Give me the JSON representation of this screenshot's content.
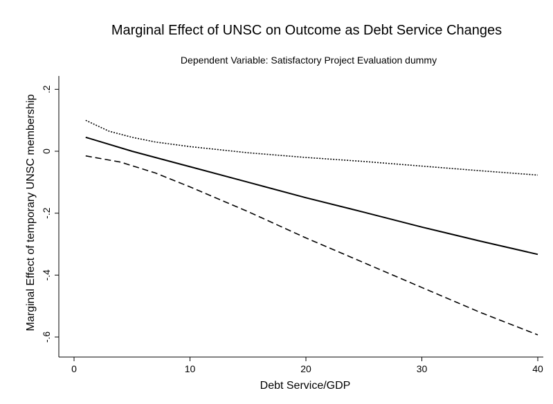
{
  "chart_data": {
    "type": "line",
    "title": "Marginal Effect of UNSC on Outcome as Debt Service Changes",
    "subtitle": "Dependent Variable: Satisfactory Project Evaluation dummy",
    "xlabel": "Debt Service/GDP",
    "ylabel": "Marginal Effect of temporary UNSC membership",
    "xlim": [
      0,
      40
    ],
    "ylim": [
      -0.6,
      0.2
    ],
    "x_ticks": [
      0,
      10,
      20,
      30,
      40
    ],
    "x_tick_labels": [
      "0",
      "10",
      "20",
      "30",
      "40"
    ],
    "y_ticks": [
      0.2,
      0,
      -0.2,
      -0.4,
      -0.6
    ],
    "y_tick_labels": [
      ".2",
      "0",
      "-.2",
      "-.4",
      "-.6"
    ],
    "grid": false,
    "legend": "none",
    "series": [
      {
        "style": "solid",
        "color": "#000000",
        "x": [
          1,
          5,
          10,
          15,
          20,
          25,
          30,
          35,
          40
        ],
        "y": [
          0.045,
          0.0,
          -0.05,
          -0.1,
          -0.15,
          -0.197,
          -0.245,
          -0.29,
          -0.333
        ]
      },
      {
        "style": "dotted",
        "color": "#000000",
        "x": [
          1,
          3,
          5,
          7,
          10,
          15,
          20,
          25,
          30,
          35,
          40
        ],
        "y": [
          0.1,
          0.065,
          0.045,
          0.03,
          0.015,
          -0.005,
          -0.02,
          -0.033,
          -0.048,
          -0.063,
          -0.077
        ]
      },
      {
        "style": "dashed",
        "color": "#000000",
        "x": [
          1,
          4,
          7,
          10,
          15,
          20,
          25,
          30,
          35,
          40
        ],
        "y": [
          -0.015,
          -0.035,
          -0.07,
          -0.115,
          -0.195,
          -0.28,
          -0.36,
          -0.44,
          -0.52,
          -0.593
        ]
      }
    ]
  }
}
